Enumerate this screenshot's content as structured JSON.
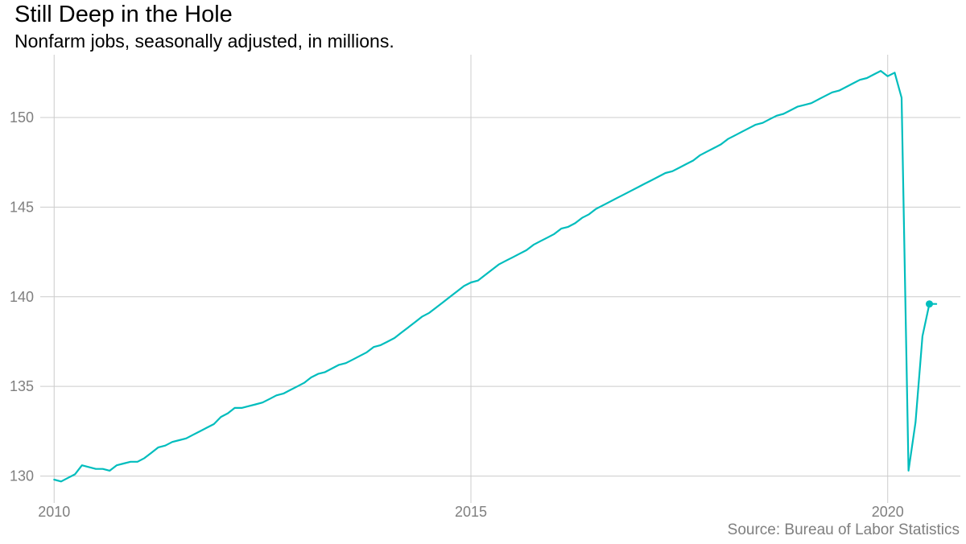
{
  "chart_data": {
    "type": "line",
    "title": "Still Deep in the Hole",
    "subtitle": "Nonfarm jobs, seasonally adjusted, in millions.",
    "caption": "Source: Bureau of Labor Statistics",
    "xlabel": "",
    "ylabel": "",
    "xlim": [
      "2009-11-01",
      "2020-11-15"
    ],
    "ylim": [
      128.5,
      153.5
    ],
    "grid": true,
    "legend": "none",
    "x_ticks": [
      {
        "value": "2010-01-01",
        "label": "2010"
      },
      {
        "value": "2015-01-01",
        "label": "2015"
      },
      {
        "value": "2020-01-01",
        "label": "2020"
      }
    ],
    "y_ticks": [
      130,
      135,
      140,
      145,
      150
    ],
    "line_color": "#00BDBD",
    "end_marker": true,
    "series": [
      {
        "x": [
          "2010-01",
          "2010-02",
          "2010-03",
          "2010-04",
          "2010-05",
          "2010-06",
          "2010-07",
          "2010-08",
          "2010-09",
          "2010-10",
          "2010-11",
          "2010-12",
          "2011-01",
          "2011-02",
          "2011-03",
          "2011-04",
          "2011-05",
          "2011-06",
          "2011-07",
          "2011-08",
          "2011-09",
          "2011-10",
          "2011-11",
          "2011-12",
          "2012-01",
          "2012-02",
          "2012-03",
          "2012-04",
          "2012-05",
          "2012-06",
          "2012-07",
          "2012-08",
          "2012-09",
          "2012-10",
          "2012-11",
          "2012-12",
          "2013-01",
          "2013-02",
          "2013-03",
          "2013-04",
          "2013-05",
          "2013-06",
          "2013-07",
          "2013-08",
          "2013-09",
          "2013-10",
          "2013-11",
          "2013-12",
          "2014-01",
          "2014-02",
          "2014-03",
          "2014-04",
          "2014-05",
          "2014-06",
          "2014-07",
          "2014-08",
          "2014-09",
          "2014-10",
          "2014-11",
          "2014-12",
          "2015-01",
          "2015-02",
          "2015-03",
          "2015-04",
          "2015-05",
          "2015-06",
          "2015-07",
          "2015-08",
          "2015-09",
          "2015-10",
          "2015-11",
          "2015-12",
          "2016-01",
          "2016-02",
          "2016-03",
          "2016-04",
          "2016-05",
          "2016-06",
          "2016-07",
          "2016-08",
          "2016-09",
          "2016-10",
          "2016-11",
          "2016-12",
          "2017-01",
          "2017-02",
          "2017-03",
          "2017-04",
          "2017-05",
          "2017-06",
          "2017-07",
          "2017-08",
          "2017-09",
          "2017-10",
          "2017-11",
          "2017-12",
          "2018-01",
          "2018-02",
          "2018-03",
          "2018-04",
          "2018-05",
          "2018-06",
          "2018-07",
          "2018-08",
          "2018-09",
          "2018-10",
          "2018-11",
          "2018-12",
          "2019-01",
          "2019-02",
          "2019-03",
          "2019-04",
          "2019-05",
          "2019-06",
          "2019-07",
          "2019-08",
          "2019-09",
          "2019-10",
          "2019-11",
          "2019-12",
          "2020-01",
          "2020-02",
          "2020-03",
          "2020-04",
          "2020-05",
          "2020-06",
          "2020-07",
          "2020-08"
        ],
        "values": [
          129.8,
          129.7,
          129.9,
          130.1,
          130.6,
          130.5,
          130.4,
          130.4,
          130.3,
          130.6,
          130.7,
          130.8,
          130.8,
          131.0,
          131.3,
          131.6,
          131.7,
          131.9,
          132.0,
          132.1,
          132.3,
          132.5,
          132.7,
          132.9,
          133.3,
          133.5,
          133.8,
          133.8,
          133.9,
          134.0,
          134.1,
          134.3,
          134.5,
          134.6,
          134.8,
          135.0,
          135.2,
          135.5,
          135.7,
          135.8,
          136.0,
          136.2,
          136.3,
          136.5,
          136.7,
          136.9,
          137.2,
          137.3,
          137.5,
          137.7,
          138.0,
          138.3,
          138.6,
          138.9,
          139.1,
          139.4,
          139.7,
          140.0,
          140.3,
          140.6,
          140.8,
          140.9,
          141.2,
          141.5,
          141.8,
          142.0,
          142.2,
          142.4,
          142.6,
          142.9,
          143.1,
          143.3,
          143.5,
          143.8,
          143.9,
          144.1,
          144.4,
          144.6,
          144.9,
          145.1,
          145.3,
          145.5,
          145.7,
          145.9,
          146.1,
          146.3,
          146.5,
          146.7,
          146.9,
          147.0,
          147.2,
          147.4,
          147.6,
          147.9,
          148.1,
          148.3,
          148.5,
          148.8,
          149.0,
          149.2,
          149.4,
          149.6,
          149.7,
          149.9,
          150.1,
          150.2,
          150.4,
          150.6,
          150.7,
          150.8,
          151.0,
          151.2,
          151.4,
          151.5,
          151.7,
          151.9,
          152.1,
          152.2,
          152.4,
          152.6,
          152.3,
          152.5,
          151.1,
          130.3,
          133.0,
          137.8,
          139.6,
          139.6
        ]
      }
    ]
  }
}
